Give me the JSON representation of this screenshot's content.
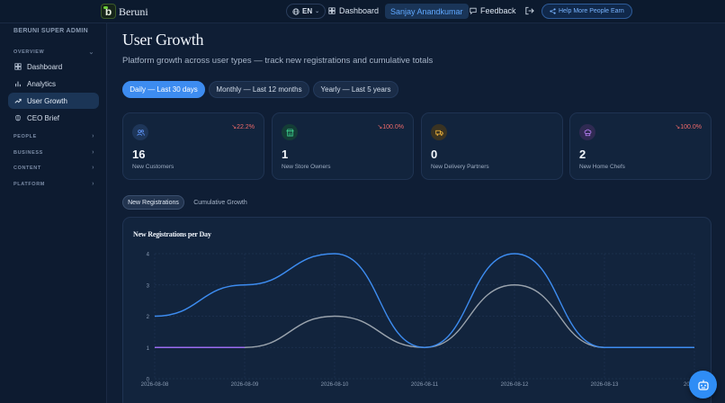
{
  "topbar": {
    "brand": "Beruni",
    "language": "EN",
    "dashboard_label": "Dashboard",
    "user_name": "Sanjay Anandkumar",
    "feedback_label": "Feedback",
    "help_label": "Help More People Earn"
  },
  "sidebar": {
    "role": "BERUNI SUPER ADMIN",
    "overview_label": "OVERVIEW",
    "items": [
      {
        "label": "Dashboard",
        "icon": "dashboard-icon"
      },
      {
        "label": "Analytics",
        "icon": "bar-chart-icon"
      },
      {
        "label": "User Growth",
        "icon": "trend-up-icon",
        "active": true
      },
      {
        "label": "CEO Brief",
        "icon": "brain-icon"
      }
    ],
    "sections": [
      "PEOPLE",
      "BUSINESS",
      "CONTENT",
      "PLATFORM"
    ]
  },
  "page": {
    "title": "User Growth",
    "subtitle": "Platform growth across user types — track new registrations and cumulative totals"
  },
  "range_tabs": [
    {
      "label": "Daily — Last 30 days",
      "active": true
    },
    {
      "label": "Monthly — Last 12 months",
      "active": false
    },
    {
      "label": "Yearly — Last 5 years",
      "active": false
    }
  ],
  "cards": [
    {
      "value": "16",
      "label": "New Customers",
      "change": "↘22.2%",
      "icon": "users-icon",
      "icon_color": "#5b8ff0",
      "icon_bg": "#1e3659"
    },
    {
      "value": "1",
      "label": "New Store Owners",
      "change": "↘100.0%",
      "icon": "store-icon",
      "icon_color": "#3ccf8e",
      "icon_bg": "#143d36"
    },
    {
      "value": "0",
      "label": "New Delivery Partners",
      "change": "",
      "icon": "truck-icon",
      "icon_color": "#f0b43c",
      "icon_bg": "#3a3322"
    },
    {
      "value": "2",
      "label": "New Home Chefs",
      "change": "↘100.0%",
      "icon": "chef-hat-icon",
      "icon_color": "#b37cf0",
      "icon_bg": "#2f2a52"
    }
  ],
  "chart_tabs": [
    {
      "label": "New Registrations",
      "active": true
    },
    {
      "label": "Cumulative Growth",
      "active": false
    }
  ],
  "chart_data": {
    "type": "line",
    "title": "New Registrations per Day",
    "x": [
      "2026-08-08",
      "2026-08-09",
      "2026-08-10",
      "2026-08-11",
      "2026-08-12",
      "2026-08-13",
      "2026-08-14"
    ],
    "x_tick_labels": [
      "2026-08-08",
      "2026-08-09",
      "2026-08-10",
      "2026-08-11",
      "2026-08-12",
      "2026-08-13",
      "2026-08-"
    ],
    "ylim": [
      0,
      4
    ],
    "yticks": [
      0,
      1,
      2,
      3,
      4
    ],
    "grid": true,
    "series": [
      {
        "values": [
          2,
          3,
          4,
          1,
          4,
          1,
          1
        ],
        "color": "#3d8cf0"
      },
      {
        "values": [
          1,
          1,
          2,
          1,
          3,
          1,
          1
        ],
        "color": "#9aa3ad"
      },
      {
        "values": [
          1,
          1,
          null,
          null,
          null,
          null,
          null
        ],
        "color": "#9a6cf0"
      }
    ]
  },
  "assistant_button": {
    "icon": "bot-icon"
  }
}
